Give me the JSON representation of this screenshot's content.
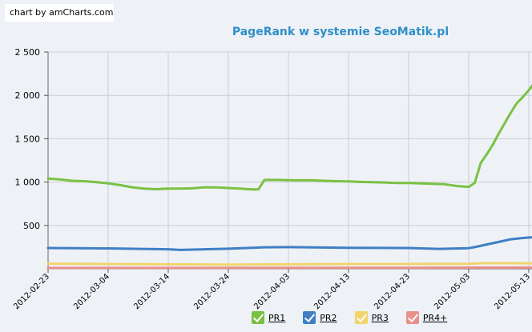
{
  "credit": "chart by amCharts.com",
  "chart_data": {
    "type": "line",
    "title": "PageRank w systemie SeoMatik.pl",
    "xlabel": "",
    "ylabel": "",
    "ylim": [
      0,
      2500
    ],
    "yticks": [
      500,
      1000,
      1500,
      2000,
      2500
    ],
    "ytick_labels": [
      "500",
      "1 000",
      "1 500",
      "2 000",
      "2 500"
    ],
    "xticks": [
      "2012-02-23",
      "2012-03-04",
      "2012-03-14",
      "2012-03-24",
      "2012-04-03",
      "2012-04-13",
      "2012-04-23",
      "2012-05-03",
      "2012-05-13"
    ],
    "grid": true,
    "legend_position": "bottom-right",
    "series": [
      {
        "name": "PR1",
        "color": "#7ac143",
        "points": [
          [
            "2012-02-23",
            1040
          ],
          [
            "2012-02-25",
            1030
          ],
          [
            "2012-02-27",
            1015
          ],
          [
            "2012-02-29",
            1010
          ],
          [
            "2012-03-02",
            1000
          ],
          [
            "2012-03-04",
            985
          ],
          [
            "2012-03-06",
            965
          ],
          [
            "2012-03-08",
            940
          ],
          [
            "2012-03-10",
            925
          ],
          [
            "2012-03-12",
            918
          ],
          [
            "2012-03-14",
            925
          ],
          [
            "2012-03-16",
            925
          ],
          [
            "2012-03-18",
            928
          ],
          [
            "2012-03-20",
            940
          ],
          [
            "2012-03-22",
            938
          ],
          [
            "2012-03-24",
            932
          ],
          [
            "2012-03-26",
            925
          ],
          [
            "2012-03-28",
            915
          ],
          [
            "2012-03-29",
            915
          ],
          [
            "2012-03-30",
            1025
          ],
          [
            "2012-04-01",
            1025
          ],
          [
            "2012-04-03",
            1022
          ],
          [
            "2012-04-05",
            1020
          ],
          [
            "2012-04-07",
            1020
          ],
          [
            "2012-04-09",
            1015
          ],
          [
            "2012-04-11",
            1010
          ],
          [
            "2012-04-13",
            1008
          ],
          [
            "2012-04-15",
            1002
          ],
          [
            "2012-04-17",
            998
          ],
          [
            "2012-04-19",
            995
          ],
          [
            "2012-04-21",
            990
          ],
          [
            "2012-04-23",
            990
          ],
          [
            "2012-04-25",
            985
          ],
          [
            "2012-04-27",
            980
          ],
          [
            "2012-04-29",
            975
          ],
          [
            "2012-05-01",
            955
          ],
          [
            "2012-05-03",
            945
          ],
          [
            "2012-05-04",
            990
          ],
          [
            "2012-05-05",
            1220
          ],
          [
            "2012-05-06",
            1320
          ],
          [
            "2012-05-07",
            1430
          ],
          [
            "2012-05-08",
            1560
          ],
          [
            "2012-05-09",
            1680
          ],
          [
            "2012-05-10",
            1800
          ],
          [
            "2012-05-11",
            1910
          ],
          [
            "2012-05-12",
            1980
          ],
          [
            "2012-05-13",
            2060
          ],
          [
            "2012-05-14",
            2150
          ],
          [
            "2012-05-15",
            2210
          ]
        ]
      },
      {
        "name": "PR2",
        "color": "#3f7fc4",
        "points": [
          [
            "2012-02-23",
            240
          ],
          [
            "2012-03-04",
            235
          ],
          [
            "2012-03-14",
            225
          ],
          [
            "2012-03-16",
            218
          ],
          [
            "2012-03-24",
            232
          ],
          [
            "2012-03-30",
            248
          ],
          [
            "2012-04-03",
            250
          ],
          [
            "2012-04-13",
            242
          ],
          [
            "2012-04-23",
            240
          ],
          [
            "2012-04-28",
            230
          ],
          [
            "2012-05-03",
            238
          ],
          [
            "2012-05-04",
            250
          ],
          [
            "2012-05-06",
            280
          ],
          [
            "2012-05-08",
            310
          ],
          [
            "2012-05-10",
            340
          ],
          [
            "2012-05-12",
            355
          ],
          [
            "2012-05-14",
            365
          ],
          [
            "2012-05-15",
            375
          ]
        ]
      },
      {
        "name": "PR3",
        "color": "#f2d46b",
        "points": [
          [
            "2012-02-23",
            60
          ],
          [
            "2012-03-04",
            55
          ],
          [
            "2012-03-14",
            52
          ],
          [
            "2012-03-24",
            48
          ],
          [
            "2012-04-03",
            52
          ],
          [
            "2012-04-13",
            55
          ],
          [
            "2012-04-23",
            55
          ],
          [
            "2012-05-03",
            58
          ],
          [
            "2012-05-05",
            65
          ],
          [
            "2012-05-10",
            65
          ],
          [
            "2012-05-15",
            62
          ]
        ]
      },
      {
        "name": "PR4+",
        "color": "#e8908a",
        "points": [
          [
            "2012-02-23",
            10
          ],
          [
            "2012-03-14",
            10
          ],
          [
            "2012-04-03",
            12
          ],
          [
            "2012-04-23",
            12
          ],
          [
            "2012-05-03",
            14
          ],
          [
            "2012-05-15",
            15
          ]
        ]
      }
    ]
  }
}
